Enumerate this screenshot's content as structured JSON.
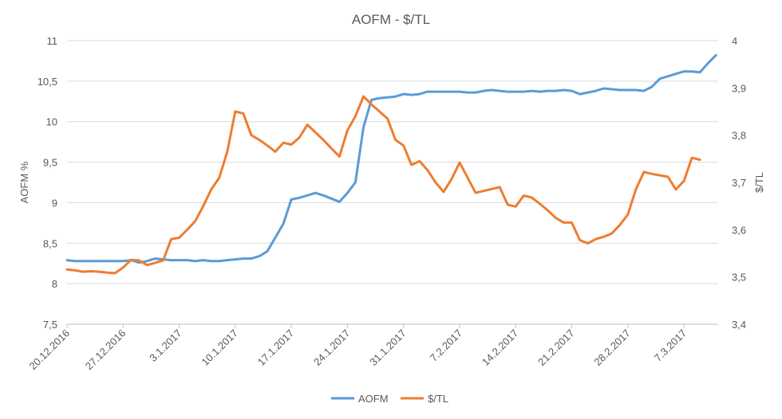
{
  "chart_data": {
    "type": "line",
    "title": "AOFM - $/TL",
    "ylabel_left": "AOFM %",
    "ylabel_right": "$/TL",
    "ylim_left": [
      7.5,
      11
    ],
    "ylim_right": [
      3.4,
      4
    ],
    "yticks_left": [
      "7,5",
      "8",
      "8,5",
      "9",
      "9,5",
      "10",
      "10,5",
      "11"
    ],
    "yticks_right": [
      "3,4",
      "3,5",
      "3,6",
      "3,7",
      "3,8",
      "3,9",
      "4"
    ],
    "x_start": "2016-12-20",
    "xtick_labels": [
      "20.12.2016",
      "27.12.2016",
      "3.1.2017",
      "10.1.2017",
      "17.1.2017",
      "24.1.2017",
      "31.1.2017",
      "7.2.2017",
      "14.2.2017",
      "21.2.2017",
      "28.2.2017",
      "7.3.2017"
    ],
    "legend_position": "bottom",
    "grid": true,
    "series": [
      {
        "name": "AOFM",
        "axis": "left",
        "color": "#5B9BD5",
        "points": [
          [
            "2016-12-20",
            8.29
          ],
          [
            "2016-12-21",
            8.28
          ],
          [
            "2016-12-22",
            8.28
          ],
          [
            "2016-12-23",
            8.28
          ],
          [
            "2016-12-24",
            8.28
          ],
          [
            "2016-12-25",
            8.28
          ],
          [
            "2016-12-26",
            8.28
          ],
          [
            "2016-12-27",
            8.28
          ],
          [
            "2016-12-28",
            8.29
          ],
          [
            "2016-12-29",
            8.26
          ],
          [
            "2016-12-30",
            8.28
          ],
          [
            "2016-12-31",
            8.31
          ],
          [
            "2017-01-01",
            8.3
          ],
          [
            "2017-01-02",
            8.29
          ],
          [
            "2017-01-03",
            8.29
          ],
          [
            "2017-01-04",
            8.29
          ],
          [
            "2017-01-05",
            8.28
          ],
          [
            "2017-01-06",
            8.29
          ],
          [
            "2017-01-07",
            8.28
          ],
          [
            "2017-01-08",
            8.28
          ],
          [
            "2017-01-09",
            8.29
          ],
          [
            "2017-01-10",
            8.3
          ],
          [
            "2017-01-11",
            8.31
          ],
          [
            "2017-01-12",
            8.31
          ],
          [
            "2017-01-13",
            8.34
          ],
          [
            "2017-01-14",
            8.4
          ],
          [
            "2017-01-16",
            8.74
          ],
          [
            "2017-01-17",
            9.04
          ],
          [
            "2017-01-18",
            9.06
          ],
          [
            "2017-01-19",
            9.09
          ],
          [
            "2017-01-20",
            9.12
          ],
          [
            "2017-01-21",
            9.09
          ],
          [
            "2017-01-22",
            9.05
          ],
          [
            "2017-01-23",
            9.01
          ],
          [
            "2017-01-24",
            9.12
          ],
          [
            "2017-01-25",
            9.25
          ],
          [
            "2017-01-26",
            9.93
          ],
          [
            "2017-01-27",
            10.27
          ],
          [
            "2017-01-28",
            10.29
          ],
          [
            "2017-01-29",
            10.3
          ],
          [
            "2017-01-30",
            10.31
          ],
          [
            "2017-01-31",
            10.34
          ],
          [
            "2017-02-01",
            10.33
          ],
          [
            "2017-02-02",
            10.34
          ],
          [
            "2017-02-03",
            10.37
          ],
          [
            "2017-02-04",
            10.37
          ],
          [
            "2017-02-05",
            10.37
          ],
          [
            "2017-02-06",
            10.37
          ],
          [
            "2017-02-07",
            10.37
          ],
          [
            "2017-02-08",
            10.36
          ],
          [
            "2017-02-09",
            10.36
          ],
          [
            "2017-02-10",
            10.38
          ],
          [
            "2017-02-11",
            10.39
          ],
          [
            "2017-02-12",
            10.38
          ],
          [
            "2017-02-13",
            10.37
          ],
          [
            "2017-02-14",
            10.37
          ],
          [
            "2017-02-15",
            10.37
          ],
          [
            "2017-02-16",
            10.38
          ],
          [
            "2017-02-17",
            10.37
          ],
          [
            "2017-02-18",
            10.38
          ],
          [
            "2017-02-19",
            10.38
          ],
          [
            "2017-02-20",
            10.39
          ],
          [
            "2017-02-21",
            10.38
          ],
          [
            "2017-02-22",
            10.34
          ],
          [
            "2017-02-23",
            10.36
          ],
          [
            "2017-02-24",
            10.38
          ],
          [
            "2017-02-25",
            10.41
          ],
          [
            "2017-02-26",
            10.4
          ],
          [
            "2017-02-27",
            10.39
          ],
          [
            "2017-02-28",
            10.39
          ],
          [
            "2017-03-01",
            10.39
          ],
          [
            "2017-03-02",
            10.38
          ],
          [
            "2017-03-03",
            10.43
          ],
          [
            "2017-03-04",
            10.53
          ],
          [
            "2017-03-05",
            10.56
          ],
          [
            "2017-03-06",
            10.59
          ],
          [
            "2017-03-07",
            10.62
          ],
          [
            "2017-03-08",
            10.62
          ],
          [
            "2017-03-09",
            10.61
          ],
          [
            "2017-03-10",
            10.72
          ],
          [
            "2017-03-11",
            10.82
          ]
        ]
      },
      {
        "name": "$/TL",
        "axis": "right",
        "color": "#ED7D31",
        "points": [
          [
            "2016-12-20",
            3.516
          ],
          [
            "2016-12-21",
            3.514
          ],
          [
            "2016-12-22",
            3.511
          ],
          [
            "2016-12-23",
            3.512
          ],
          [
            "2016-12-24",
            3.511
          ],
          [
            "2016-12-25",
            3.509
          ],
          [
            "2016-12-26",
            3.508
          ],
          [
            "2016-12-27",
            3.52
          ],
          [
            "2016-12-28",
            3.536
          ],
          [
            "2016-12-29",
            3.535
          ],
          [
            "2016-12-30",
            3.525
          ],
          [
            "2016-12-31",
            3.53
          ],
          [
            "2017-01-01",
            3.535
          ],
          [
            "2017-01-02",
            3.58
          ],
          [
            "2017-01-03",
            3.583
          ],
          [
            "2017-01-04",
            3.6
          ],
          [
            "2017-01-05",
            3.618
          ],
          [
            "2017-01-06",
            3.65
          ],
          [
            "2017-01-07",
            3.685
          ],
          [
            "2017-01-08",
            3.71
          ],
          [
            "2017-01-09",
            3.765
          ],
          [
            "2017-01-10",
            3.85
          ],
          [
            "2017-01-11",
            3.846
          ],
          [
            "2017-01-12",
            3.8
          ],
          [
            "2017-01-13",
            3.79
          ],
          [
            "2017-01-14",
            3.778
          ],
          [
            "2017-01-15",
            3.765
          ],
          [
            "2017-01-16",
            3.784
          ],
          [
            "2017-01-17",
            3.78
          ],
          [
            "2017-01-18",
            3.795
          ],
          [
            "2017-01-19",
            3.822
          ],
          [
            "2017-01-20",
            3.806
          ],
          [
            "2017-01-21",
            3.79
          ],
          [
            "2017-01-22",
            3.772
          ],
          [
            "2017-01-23",
            3.755
          ],
          [
            "2017-01-24",
            3.81
          ],
          [
            "2017-01-25",
            3.84
          ],
          [
            "2017-01-26",
            3.882
          ],
          [
            "2017-01-27",
            3.865
          ],
          [
            "2017-01-28",
            3.85
          ],
          [
            "2017-01-29",
            3.835
          ],
          [
            "2017-01-30",
            3.79
          ],
          [
            "2017-01-31",
            3.778
          ],
          [
            "2017-02-01",
            3.737
          ],
          [
            "2017-02-02",
            3.745
          ],
          [
            "2017-02-03",
            3.726
          ],
          [
            "2017-02-04",
            3.7
          ],
          [
            "2017-02-05",
            3.68
          ],
          [
            "2017-02-06",
            3.707
          ],
          [
            "2017-02-07",
            3.742
          ],
          [
            "2017-02-08",
            3.71
          ],
          [
            "2017-02-09",
            3.678
          ],
          [
            "2017-02-10",
            3.682
          ],
          [
            "2017-02-11",
            3.686
          ],
          [
            "2017-02-12",
            3.69
          ],
          [
            "2017-02-13",
            3.653
          ],
          [
            "2017-02-14",
            3.649
          ],
          [
            "2017-02-15",
            3.672
          ],
          [
            "2017-02-16",
            3.668
          ],
          [
            "2017-02-17",
            3.655
          ],
          [
            "2017-02-18",
            3.641
          ],
          [
            "2017-02-19",
            3.625
          ],
          [
            "2017-02-20",
            3.615
          ],
          [
            "2017-02-21",
            3.615
          ],
          [
            "2017-02-22",
            3.578
          ],
          [
            "2017-02-23",
            3.571
          ],
          [
            "2017-02-24",
            3.58
          ],
          [
            "2017-02-25",
            3.585
          ],
          [
            "2017-02-26",
            3.592
          ],
          [
            "2017-02-27",
            3.61
          ],
          [
            "2017-02-28",
            3.632
          ],
          [
            "2017-03-01",
            3.685
          ],
          [
            "2017-03-02",
            3.722
          ],
          [
            "2017-03-03",
            3.718
          ],
          [
            "2017-03-04",
            3.715
          ],
          [
            "2017-03-05",
            3.712
          ],
          [
            "2017-03-06",
            3.685
          ],
          [
            "2017-03-07",
            3.703
          ],
          [
            "2017-03-08",
            3.752
          ],
          [
            "2017-03-09",
            3.748
          ]
        ]
      }
    ]
  }
}
